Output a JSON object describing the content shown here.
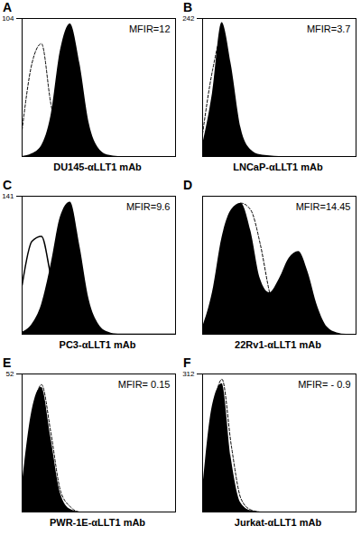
{
  "chart_data": [
    {
      "type": "line",
      "title": "A",
      "xlabel": "DU145-αLLT1 mAb",
      "annotations": [
        "MFIR=12"
      ],
      "log": "x",
      "tick_labels": "y",
      "x": [
        1,
        1.8,
        3.2,
        5.6,
        10,
        18,
        32,
        56,
        100,
        180,
        320,
        560,
        1000,
        1800,
        3200,
        5600,
        10000
      ],
      "xlim": [
        1,
        10000
      ],
      "ylim": [
        0,
        104
      ],
      "yticks": [
        104
      ],
      "series": [
        {
          "type": "area",
          "color": "#000000",
          "line_style": "solid",
          "values": [
            0,
            2,
            8,
            30,
            80,
            100,
            70,
            25,
            6,
            1,
            0,
            0,
            0,
            0,
            0,
            0,
            0
          ]
        },
        {
          "type": "line",
          "color": "#000000",
          "line_style": "dashed",
          "values": [
            20,
            70,
            85,
            40,
            10,
            2,
            0,
            0,
            0,
            0,
            0,
            0,
            0,
            0,
            0,
            0,
            0
          ]
        }
      ]
    },
    {
      "type": "line",
      "title": "B",
      "xlabel": "LNCaP-αLLT1 mAb",
      "annotations": [
        "MFIR=3.7"
      ],
      "log": "x",
      "tick_labels": "y",
      "x": [
        1,
        1.8,
        3.2,
        5.6,
        10,
        18,
        32,
        56,
        100,
        180,
        320,
        560,
        1000,
        1800,
        3200,
        5600,
        10000
      ],
      "xlim": [
        1,
        10000
      ],
      "ylim": [
        0,
        242
      ],
      "yticks": [
        242
      ],
      "series": [
        {
          "type": "area",
          "color": "#000000",
          "line_style": "solid",
          "values": [
            20,
            110,
            235,
            160,
            50,
            12,
            3,
            1,
            0,
            0,
            0,
            0,
            0,
            0,
            0,
            0,
            0
          ]
        },
        {
          "type": "line",
          "color": "#000000",
          "line_style": "dashed",
          "values": [
            40,
            150,
            210,
            110,
            30,
            6,
            1,
            0,
            0,
            0,
            0,
            0,
            0,
            0,
            0,
            0,
            0
          ]
        }
      ]
    },
    {
      "type": "line",
      "title": "C",
      "xlabel": "PC3-αLLT1 mAb",
      "annotations": [
        "MFIR=9.6"
      ],
      "log": "x",
      "tick_labels": "y",
      "x": [
        1,
        1.8,
        3.2,
        5.6,
        10,
        18,
        32,
        56,
        100,
        180,
        320,
        560,
        1000,
        1800,
        3200,
        5600,
        10000
      ],
      "xlim": [
        1,
        10000
      ],
      "ylim": [
        0,
        141
      ],
      "yticks": [
        141
      ],
      "series": [
        {
          "type": "area",
          "color": "#000000",
          "line_style": "solid",
          "values": [
            2,
            10,
            30,
            70,
            120,
            135,
            90,
            35,
            10,
            2,
            0,
            0,
            0,
            0,
            0,
            0,
            0
          ]
        },
        {
          "type": "line",
          "color": "#000000",
          "line_style": "solid",
          "values": [
            50,
            95,
            100,
            60,
            20,
            5,
            1,
            0,
            0,
            0,
            0,
            0,
            0,
            0,
            0,
            0,
            0
          ]
        }
      ]
    },
    {
      "type": "line",
      "title": "D",
      "xlabel": "22Rv1-αLLT1 mAb",
      "annotations": [
        "MFIR=14.45"
      ],
      "log": "x",
      "tick_labels": "y",
      "x": [
        1,
        1.8,
        3.2,
        5.6,
        10,
        18,
        32,
        56,
        100,
        180,
        320,
        560,
        1000,
        1800,
        3200,
        5600,
        10000
      ],
      "xlim": [
        1,
        10000
      ],
      "ylim": [
        0,
        100
      ],
      "yticks": [],
      "series": [
        {
          "type": "area",
          "color": "#000000",
          "line_style": "solid",
          "values": [
            5,
            30,
            70,
            90,
            95,
            75,
            40,
            30,
            40,
            55,
            60,
            45,
            20,
            5,
            1,
            0,
            0
          ]
        },
        {
          "type": "line",
          "color": "#000000",
          "line_style": "dashed",
          "values": [
            5,
            20,
            50,
            80,
            95,
            90,
            65,
            30,
            8,
            2,
            0,
            0,
            0,
            0,
            0,
            0,
            0
          ]
        }
      ]
    },
    {
      "type": "line",
      "title": "E",
      "xlabel": "PWR-1E-αLLT1 mAb",
      "annotations": [
        "MFIR= 0.15"
      ],
      "log": "x",
      "tick_labels": "y",
      "x": [
        1,
        1.8,
        3.2,
        5.6,
        10,
        18,
        32,
        56,
        100,
        180,
        320,
        560,
        1000,
        1800,
        3200,
        5600,
        10000
      ],
      "xlim": [
        1,
        10000
      ],
      "ylim": [
        0,
        52
      ],
      "yticks": [
        52
      ],
      "series": [
        {
          "type": "area",
          "color": "#000000",
          "line_style": "solid",
          "values": [
            10,
            38,
            47,
            28,
            7,
            1,
            0,
            0,
            0,
            0,
            0,
            0,
            0,
            0,
            0,
            0,
            0
          ]
        },
        {
          "type": "line",
          "color": "#000000",
          "line_style": "dashed",
          "values": [
            8,
            35,
            48,
            30,
            8,
            2,
            0,
            0,
            0,
            0,
            0,
            0,
            0,
            0,
            0,
            0,
            0
          ]
        }
      ]
    },
    {
      "type": "line",
      "title": "F",
      "xlabel": "Jurkat-αLLT1 mAb",
      "annotations": [
        "MFIR= - 0.9"
      ],
      "log": "x",
      "tick_labels": "y",
      "x": [
        1,
        1.8,
        3.2,
        5.6,
        10,
        18,
        32,
        56,
        100,
        180,
        320,
        560,
        1000,
        1800,
        3200,
        5600,
        10000
      ],
      "xlim": [
        1,
        10000
      ],
      "ylim": [
        0,
        312
      ],
      "yticks": [
        312
      ],
      "series": [
        {
          "type": "area",
          "color": "#000000",
          "line_style": "solid",
          "values": [
            50,
            240,
            290,
            120,
            20,
            3,
            0,
            0,
            0,
            0,
            0,
            0,
            0,
            0,
            0,
            0,
            0
          ]
        },
        {
          "type": "line",
          "color": "#000000",
          "line_style": "dashed",
          "values": [
            40,
            220,
            300,
            150,
            30,
            5,
            0,
            0,
            0,
            0,
            0,
            0,
            0,
            0,
            0,
            0,
            0
          ]
        }
      ]
    }
  ]
}
